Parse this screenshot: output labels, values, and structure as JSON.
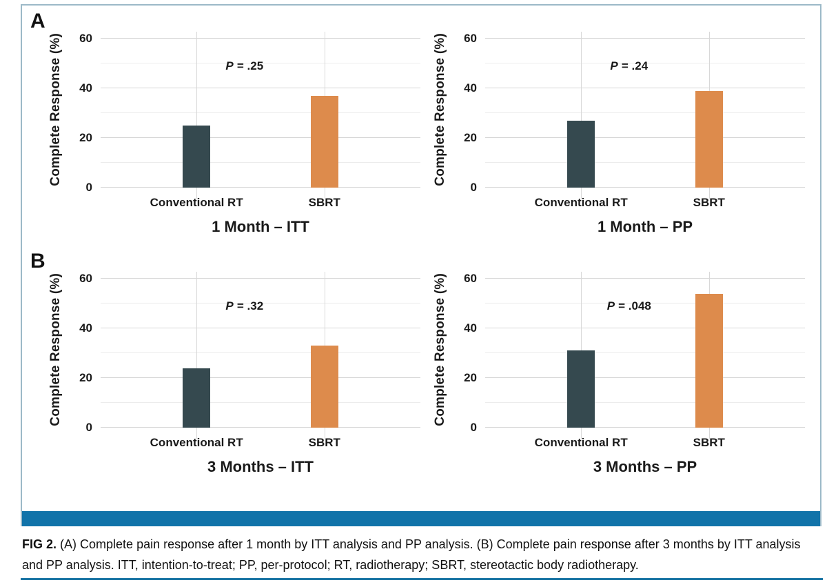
{
  "figure": {
    "caption_label": "FIG 2.",
    "caption_text": "(A) Complete pain response after 1 month by ITT analysis and PP analysis. (B) Complete pain response after 3 months by ITT analysis and PP analysis. ITT, intention-to-treat; PP, per-protocol; RT, radiotherapy; SBRT, stereotactic body radiotherapy."
  },
  "panels": [
    {
      "label": "A"
    },
    {
      "label": "B"
    }
  ],
  "colors": {
    "conventional_bar": "#35494f",
    "sbrt_bar": "#dd8b4c",
    "panel_bottom_bar": "#1173a9",
    "bottom_rule": "#1d76a5",
    "box_border": "#9cb9c8",
    "grid_major": "#d6d6d6",
    "grid_minor": "#ececec"
  },
  "chart_data": [
    {
      "type": "bar",
      "panel": "A",
      "title": "1 Month – ITT",
      "ylabel": "Complete Response (%)",
      "categories": [
        "Conventional RT",
        "SBRT"
      ],
      "values": [
        25,
        37
      ],
      "bar_colors": [
        "#35494f",
        "#dd8b4c"
      ],
      "annotation": "P = .25",
      "p_symbol": "P",
      "p_rest": "= .25",
      "yticks": [
        0,
        20,
        40,
        60
      ],
      "ylim": [
        0,
        60
      ],
      "grid": "horizontal every 10, vertical at category centers",
      "legend": "none"
    },
    {
      "type": "bar",
      "panel": "A",
      "title": "1 Month – PP",
      "ylabel": "Complete Response (%)",
      "categories": [
        "Conventional RT",
        "SBRT"
      ],
      "values": [
        27,
        39
      ],
      "bar_colors": [
        "#35494f",
        "#dd8b4c"
      ],
      "annotation": "P = .24",
      "p_symbol": "P",
      "p_rest": "= .24",
      "yticks": [
        0,
        20,
        40,
        60
      ],
      "ylim": [
        0,
        60
      ],
      "grid": "horizontal every 10, vertical at category centers",
      "legend": "none"
    },
    {
      "type": "bar",
      "panel": "B",
      "title": "3 Months – ITT",
      "ylabel": "Complete Response (%)",
      "categories": [
        "Conventional RT",
        "SBRT"
      ],
      "values": [
        24,
        33
      ],
      "bar_colors": [
        "#35494f",
        "#dd8b4c"
      ],
      "annotation": "P = .32",
      "p_symbol": "P",
      "p_rest": "= .32",
      "yticks": [
        0,
        20,
        40,
        60
      ],
      "ylim": [
        0,
        60
      ],
      "grid": "horizontal every 10, vertical at category centers",
      "legend": "none"
    },
    {
      "type": "bar",
      "panel": "B",
      "title": "3 Months – PP",
      "ylabel": "Complete Response (%)",
      "categories": [
        "Conventional RT",
        "SBRT"
      ],
      "values": [
        31,
        54
      ],
      "bar_colors": [
        "#35494f",
        "#dd8b4c"
      ],
      "annotation": "P = .048",
      "p_symbol": "P",
      "p_rest": "= .048",
      "yticks": [
        0,
        20,
        40,
        60
      ],
      "ylim": [
        0,
        60
      ],
      "grid": "horizontal every 10, vertical at category centers",
      "legend": "none"
    }
  ]
}
